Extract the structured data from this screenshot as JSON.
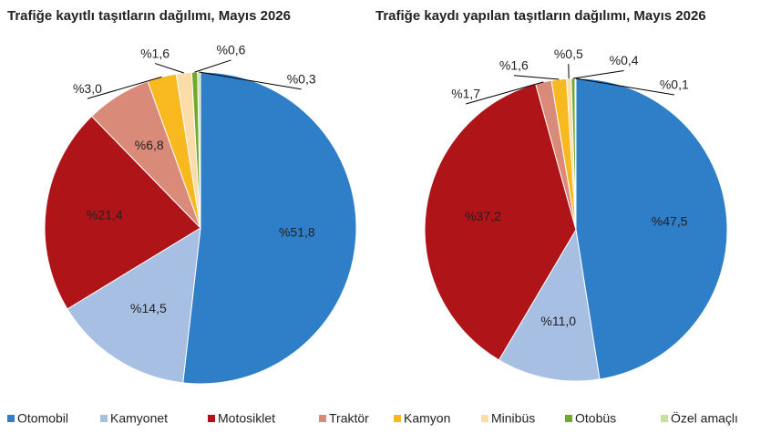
{
  "chart_data": [
    {
      "type": "pie",
      "title": "Trafiğe kayıtlı taşıtların dağılımı, Mayıs 2026",
      "categories": [
        "Otomobil",
        "Kamyonet",
        "Motosiklet",
        "Traktör",
        "Kamyon",
        "Minibüs",
        "Otobüs",
        "Özel amaçlı"
      ],
      "values": [
        51.8,
        14.5,
        21.4,
        6.8,
        3.0,
        1.6,
        0.6,
        0.3
      ],
      "value_labels": [
        "%51,8",
        "%14,5",
        "%21,4",
        "%6,8",
        "%3,0",
        "%1,6",
        "%0,6",
        "%0,3"
      ],
      "colors": [
        "#2e7fc8",
        "#a6bfe2",
        "#ae1418",
        "#d98a78",
        "#f7b820",
        "#fcdca8",
        "#72a82c",
        "#c7e0a4"
      ]
    },
    {
      "type": "pie",
      "title": "Trafiğe kaydı yapılan taşıtların dağılımı, Mayıs 2026",
      "categories": [
        "Otomobil",
        "Kamyonet",
        "Motosiklet",
        "Traktör",
        "Kamyon",
        "Minibüs",
        "Otobüs",
        "Özel amaçlı"
      ],
      "values": [
        47.5,
        11.0,
        37.2,
        1.7,
        1.6,
        0.5,
        0.4,
        0.1
      ],
      "value_labels": [
        "%47,5",
        "%11,0",
        "%37,2",
        "%1,7",
        "%1,6",
        "%0,5",
        "%0,4",
        "%0,1"
      ],
      "colors": [
        "#2e7fc8",
        "#a6bfe2",
        "#ae1418",
        "#d98a78",
        "#f7b820",
        "#fcdca8",
        "#72a82c",
        "#c7e0a4"
      ]
    }
  ]
}
